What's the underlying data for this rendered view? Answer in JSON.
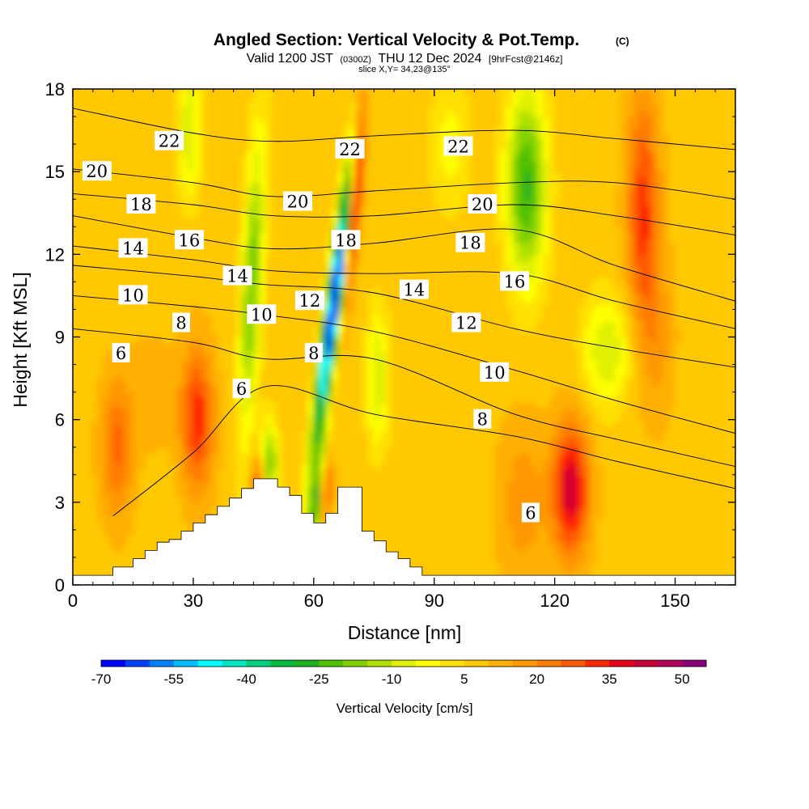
{
  "header": {
    "title": "Angled Section: Vertical Velocity & Pot.Temp.",
    "title_units": "(C)",
    "valid_pre": "Valid 1200 JST",
    "valid_z": "(0300Z)",
    "valid_date": "THU 12 Dec 2024",
    "valid_fcst": "[9hrFcst@2146z]",
    "slice": "slice X,Y= 34,23@135°"
  },
  "chart_data": {
    "type": "heatmap",
    "xlabel": "Distance [nm]",
    "ylabel": "Height [Kft MSL]",
    "xlim": [
      0,
      165
    ],
    "ylim": [
      0,
      18
    ],
    "x_ticks": [
      "0",
      "30",
      "60",
      "90",
      "120",
      "150"
    ],
    "x_tick_values": [
      0,
      30,
      60,
      90,
      120,
      150
    ],
    "y_ticks": [
      "0",
      "3",
      "6",
      "9",
      "12",
      "15",
      "18"
    ],
    "y_tick_values": [
      0,
      3,
      6,
      9,
      12,
      15,
      18
    ],
    "colorbar": {
      "label": "Vertical Velocity [cm/s]",
      "tick_labels": [
        "-70",
        "-55",
        "-40",
        "-25",
        "-10",
        "5",
        "20",
        "35",
        "50"
      ],
      "tick_values": [
        -70,
        -55,
        -40,
        -25,
        -10,
        5,
        20,
        35,
        50
      ],
      "range": [
        -70,
        55
      ],
      "step": 5,
      "colors": [
        "#0000ff",
        "#0040ff",
        "#0080ff",
        "#00bfff",
        "#00ffff",
        "#00e6c0",
        "#00d080",
        "#00bb40",
        "#20b020",
        "#50c000",
        "#80d000",
        "#b0e000",
        "#e0f000",
        "#ffff00",
        "#ffe000",
        "#ffc800",
        "#ffb000",
        "#ff9800",
        "#ff7e00",
        "#ff5a00",
        "#ff2800",
        "#e8001a",
        "#c8003a",
        "#b0005a",
        "#880078"
      ]
    },
    "isentropes": [
      {
        "label": "6",
        "points": [
          [
            10,
            2.5
          ],
          [
            30,
            4.8
          ],
          [
            48,
            7.2
          ],
          [
            75,
            6.2
          ],
          [
            110,
            5.4
          ],
          [
            135,
            4.5
          ],
          [
            165,
            3.5
          ]
        ]
      },
      {
        "label": "8",
        "points": [
          [
            0,
            9.3
          ],
          [
            30,
            8.8
          ],
          [
            48,
            8.2
          ],
          [
            75,
            8.2
          ],
          [
            110,
            6.2
          ],
          [
            135,
            5.3
          ],
          [
            165,
            4.3
          ]
        ]
      },
      {
        "label": "10",
        "points": [
          [
            0,
            10.5
          ],
          [
            30,
            10.1
          ],
          [
            48,
            9.8
          ],
          [
            75,
            9.2
          ],
          [
            110,
            7.8
          ],
          [
            135,
            6.7
          ],
          [
            165,
            5.5
          ]
        ]
      },
      {
        "label": "12",
        "points": [
          [
            0,
            11.6
          ],
          [
            30,
            11.2
          ],
          [
            48,
            10.9
          ],
          [
            75,
            10.6
          ],
          [
            110,
            9.3
          ],
          [
            135,
            8.6
          ],
          [
            165,
            7.9
          ]
        ]
      },
      {
        "label": "14",
        "points": [
          [
            0,
            12.3
          ],
          [
            30,
            11.8
          ],
          [
            50,
            11.4
          ],
          [
            75,
            11.3
          ],
          [
            110,
            11.3
          ],
          [
            135,
            10.3
          ],
          [
            165,
            9.3
          ]
        ]
      },
      {
        "label": "16",
        "points": [
          [
            0,
            13.4
          ],
          [
            30,
            12.6
          ],
          [
            50,
            12.2
          ],
          [
            75,
            12.4
          ],
          [
            110,
            12.9
          ],
          [
            135,
            11.6
          ],
          [
            165,
            10.3
          ]
        ]
      },
      {
        "label": "18",
        "points": [
          [
            0,
            14.2
          ],
          [
            30,
            13.8
          ],
          [
            50,
            13.4
          ],
          [
            75,
            13.4
          ],
          [
            110,
            13.8
          ],
          [
            135,
            13.4
          ],
          [
            165,
            12.7
          ]
        ]
      },
      {
        "label": "20",
        "points": [
          [
            0,
            15.1
          ],
          [
            30,
            14.6
          ],
          [
            50,
            14.1
          ],
          [
            75,
            14.3
          ],
          [
            110,
            14.6
          ],
          [
            135,
            14.6
          ],
          [
            165,
            14.0
          ]
        ]
      },
      {
        "label": "22",
        "points": [
          [
            0,
            17.3
          ],
          [
            30,
            16.4
          ],
          [
            50,
            16.1
          ],
          [
            75,
            16.3
          ],
          [
            110,
            16.5
          ],
          [
            135,
            16.2
          ],
          [
            165,
            15.8
          ]
        ]
      }
    ],
    "contour_labels": [
      {
        "label": "22",
        "x": 24,
        "y": 16.1
      },
      {
        "label": "20",
        "x": 6,
        "y": 15.0
      },
      {
        "label": "18",
        "x": 17,
        "y": 13.8
      },
      {
        "label": "14",
        "x": 15,
        "y": 12.2
      },
      {
        "label": "16",
        "x": 29,
        "y": 12.5
      },
      {
        "label": "10",
        "x": 15,
        "y": 10.5
      },
      {
        "label": "8",
        "x": 27,
        "y": 9.5
      },
      {
        "label": "6",
        "x": 12,
        "y": 8.4
      },
      {
        "label": "14",
        "x": 41,
        "y": 11.2
      },
      {
        "label": "10",
        "x": 47,
        "y": 9.8
      },
      {
        "label": "6",
        "x": 42,
        "y": 7.1
      },
      {
        "label": "20",
        "x": 56,
        "y": 13.9
      },
      {
        "label": "12",
        "x": 59,
        "y": 10.3
      },
      {
        "label": "8",
        "x": 60,
        "y": 8.4
      },
      {
        "label": "18",
        "x": 68,
        "y": 12.5
      },
      {
        "label": "22",
        "x": 69,
        "y": 15.8
      },
      {
        "label": "14",
        "x": 85,
        "y": 10.7
      },
      {
        "label": "12",
        "x": 98,
        "y": 9.5
      },
      {
        "label": "10",
        "x": 105,
        "y": 7.7
      },
      {
        "label": "8",
        "x": 102,
        "y": 6.0
      },
      {
        "label": "22",
        "x": 96,
        "y": 15.9
      },
      {
        "label": "20",
        "x": 102,
        "y": 13.8
      },
      {
        "label": "18",
        "x": 99,
        "y": 12.4
      },
      {
        "label": "16",
        "x": 110,
        "y": 11.0
      },
      {
        "label": "6",
        "x": 114,
        "y": 2.6
      }
    ],
    "terrain": {
      "x": [
        0,
        10,
        10,
        15,
        15,
        18,
        18,
        21,
        21,
        24,
        24,
        27,
        27,
        30,
        30,
        33,
        33,
        36,
        36,
        39,
        39,
        42,
        42,
        45,
        45,
        48,
        48,
        51,
        51,
        54,
        54,
        57,
        57,
        60,
        60,
        63,
        63,
        66,
        66,
        69,
        69,
        72,
        72,
        75,
        75,
        78,
        78,
        81,
        81,
        84,
        84,
        87,
        87,
        90,
        90,
        165
      ],
      "y": [
        0.35,
        0.35,
        0.65,
        0.65,
        0.95,
        0.95,
        1.25,
        1.25,
        1.55,
        1.55,
        1.65,
        1.65,
        1.95,
        1.95,
        2.25,
        2.25,
        2.55,
        2.55,
        2.85,
        2.85,
        3.15,
        3.15,
        3.5,
        3.5,
        3.85,
        3.85,
        3.85,
        3.85,
        3.55,
        3.55,
        3.25,
        3.25,
        2.6,
        2.6,
        2.25,
        2.25,
        2.6,
        2.6,
        3.55,
        3.55,
        3.55,
        3.55,
        1.95,
        1.95,
        1.6,
        1.6,
        1.2,
        1.2,
        0.95,
        0.95,
        0.65,
        0.65,
        0.35,
        0.35,
        0.35,
        0.35
      ]
    }
  }
}
